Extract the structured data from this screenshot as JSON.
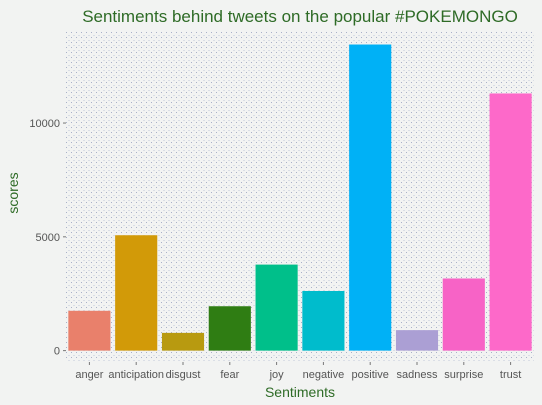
{
  "chart_data": {
    "type": "bar",
    "title": "Sentiments behind tweets on the popular #POKEMONGO",
    "xlabel": "Sentiments",
    "ylabel": "scores",
    "categories": [
      "anger",
      "anticipation",
      "disgust",
      "fear",
      "joy",
      "negative",
      "positive",
      "sadness",
      "surprise",
      "trust"
    ],
    "values": [
      1750,
      5070,
      780,
      1950,
      3780,
      2620,
      13450,
      900,
      3170,
      11300
    ],
    "colors": [
      "#e9806b",
      "#d29a08",
      "#b89a10",
      "#2f7d13",
      "#00bf8a",
      "#00bccc",
      "#00b1f6",
      "#ab9fd4",
      "#f763c6",
      "#fd69c9"
    ],
    "yticks": [
      0,
      5000,
      10000
    ],
    "ylim": [
      -500,
      14000
    ],
    "grid": false,
    "legend": "none"
  }
}
